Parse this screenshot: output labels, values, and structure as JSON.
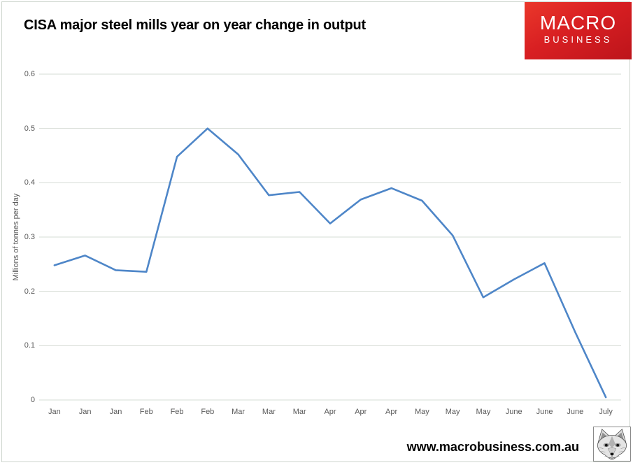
{
  "header": {
    "title": "CISA major steel mills year on year change in output",
    "logo": {
      "line1": "MACRO",
      "line2": "BUSINESS",
      "bg_color": "#d81f22",
      "text_color": "#ffffff"
    }
  },
  "footer": {
    "website": "www.macrobusiness.com.au",
    "fox_logo": "fox-sketch-icon"
  },
  "chart_data": {
    "type": "line",
    "title": "CISA major steel mills year on year change in output",
    "xlabel": "",
    "ylabel": "Millions of tonnes per day",
    "categories": [
      "Jan",
      "Jan",
      "Jan",
      "Feb",
      "Feb",
      "Feb",
      "Mar",
      "Mar",
      "Mar",
      "Apr",
      "Apr",
      "Apr",
      "May",
      "May",
      "May",
      "June",
      "June",
      "June",
      "July"
    ],
    "values": [
      0.248,
      0.266,
      0.239,
      0.236,
      0.448,
      0.5,
      0.452,
      0.377,
      0.383,
      0.325,
      0.369,
      0.39,
      0.367,
      0.303,
      0.189,
      0.222,
      0.252,
      0.125,
      0.005
    ],
    "y_ticks": [
      "0",
      "0.1",
      "0.2",
      "0.3",
      "0.4",
      "0.5",
      "0.6"
    ],
    "ylim": [
      0,
      0.6
    ],
    "grid": "horizontal",
    "legend": "none",
    "line_color": "#4e86c8",
    "gridline_color": "#d6dcd4",
    "tick_color": "#595959"
  }
}
